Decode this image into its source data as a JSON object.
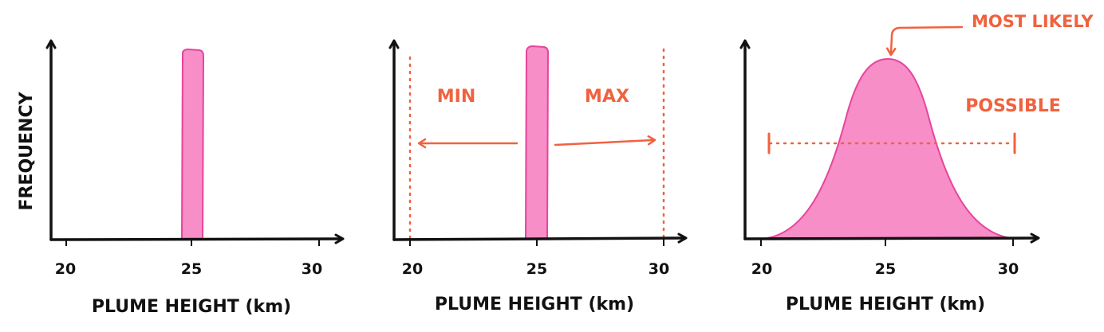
{
  "colors": {
    "ink": "#111111",
    "accent": "#f0623f",
    "fill": "#f78ec7",
    "fill_stroke": "#e8449c"
  },
  "panels": [
    {
      "ylabel": "FREQUENCY",
      "xlabel": "PLUME HEIGHT (km)",
      "ticks": [
        "20",
        "25",
        "30"
      ]
    },
    {
      "xlabel": "PLUME HEIGHT (km)",
      "ticks": [
        "20",
        "25",
        "30"
      ],
      "min_label": "MIN",
      "max_label": "MAX"
    },
    {
      "xlabel": "PLUME HEIGHT (km)",
      "ticks": [
        "20",
        "25",
        "30"
      ],
      "most_likely_label": "MOST LIKELY",
      "possible_label": "POSSIBLE"
    }
  ]
}
